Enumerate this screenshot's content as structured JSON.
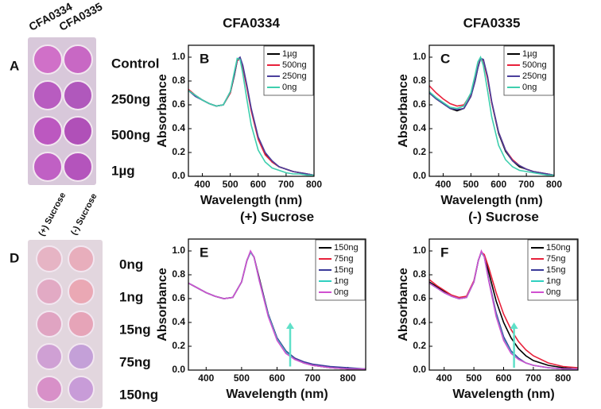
{
  "photos": [
    {
      "label": "A",
      "columns": [
        "CFA0334",
        "CFA0335"
      ],
      "rows": [
        "Control",
        "250ng",
        "500ng",
        "1µg"
      ]
    },
    {
      "label": "D",
      "columns": [
        "(+) Sucrose",
        "(-) Sucrose"
      ],
      "rows": [
        "0ng",
        "1ng",
        "15ng",
        "75ng",
        "150ng"
      ]
    }
  ],
  "chart_data": [
    {
      "type": "line",
      "label": "B",
      "title": "CFA0334",
      "xlabel": "Wavelength (nm)",
      "ylabel": "Absorbance",
      "legend": "upper right",
      "xlim": [
        350,
        800
      ],
      "ylim": [
        0,
        1.1
      ],
      "xticks": [
        400,
        500,
        600,
        700,
        800
      ],
      "yticks": [
        {
          "value": 0,
          "label": "0.0"
        },
        0.2,
        0.4,
        0.6,
        0.8,
        {
          "value": 1,
          "label": "1.0"
        }
      ],
      "x": [
        350,
        375,
        400,
        425,
        450,
        475,
        500,
        515,
        525,
        535,
        545,
        560,
        575,
        600,
        625,
        650,
        675,
        700,
        725,
        750,
        775,
        800
      ],
      "series": [
        {
          "name": "1µg",
          "color": "#000000",
          "values": [
            0.72,
            0.68,
            0.64,
            0.61,
            0.59,
            0.6,
            0.7,
            0.85,
            0.97,
            0.99,
            0.92,
            0.75,
            0.56,
            0.32,
            0.19,
            0.12,
            0.08,
            0.06,
            0.04,
            0.03,
            0.02,
            0.01
          ]
        },
        {
          "name": "500ng",
          "color": "#e8213b",
          "values": [
            0.73,
            0.68,
            0.64,
            0.61,
            0.59,
            0.6,
            0.7,
            0.86,
            0.97,
            0.99,
            0.91,
            0.74,
            0.55,
            0.31,
            0.18,
            0.12,
            0.08,
            0.06,
            0.04,
            0.03,
            0.02,
            0.01
          ]
        },
        {
          "name": "250ng",
          "color": "#4b3f9c",
          "values": [
            0.72,
            0.67,
            0.64,
            0.61,
            0.59,
            0.6,
            0.71,
            0.86,
            0.98,
            1.0,
            0.93,
            0.76,
            0.57,
            0.33,
            0.2,
            0.13,
            0.08,
            0.06,
            0.04,
            0.03,
            0.02,
            0.01
          ]
        },
        {
          "name": "0ng",
          "color": "#3ecfae",
          "values": [
            0.72,
            0.68,
            0.64,
            0.61,
            0.59,
            0.6,
            0.71,
            0.88,
            0.99,
            0.98,
            0.86,
            0.64,
            0.43,
            0.22,
            0.12,
            0.07,
            0.05,
            0.03,
            0.02,
            0.02,
            0.01,
            0.01
          ]
        }
      ]
    },
    {
      "type": "line",
      "label": "C",
      "title": "CFA0335",
      "xlabel": "Wavelength (nm)",
      "ylabel": "Absorbance",
      "legend": "upper right",
      "xlim": [
        350,
        800
      ],
      "ylim": [
        0,
        1.1
      ],
      "xticks": [
        400,
        500,
        600,
        700,
        800
      ],
      "yticks": [
        {
          "value": 0,
          "label": "0.0"
        },
        0.2,
        0.4,
        0.6,
        0.8,
        {
          "value": 1,
          "label": "1.0"
        }
      ],
      "x": [
        350,
        375,
        400,
        425,
        450,
        475,
        500,
        515,
        525,
        535,
        545,
        560,
        575,
        600,
        625,
        650,
        675,
        700,
        725,
        750,
        775,
        800
      ],
      "series": [
        {
          "name": "1µg",
          "color": "#000000",
          "values": [
            0.7,
            0.65,
            0.61,
            0.57,
            0.55,
            0.57,
            0.67,
            0.8,
            0.91,
            0.99,
            0.98,
            0.83,
            0.62,
            0.36,
            0.21,
            0.13,
            0.08,
            0.06,
            0.04,
            0.03,
            0.02,
            0.01
          ]
        },
        {
          "name": "500ng",
          "color": "#e8213b",
          "values": [
            0.76,
            0.7,
            0.65,
            0.61,
            0.59,
            0.6,
            0.69,
            0.82,
            0.92,
            0.99,
            0.97,
            0.82,
            0.62,
            0.37,
            0.22,
            0.14,
            0.09,
            0.06,
            0.04,
            0.03,
            0.02,
            0.01
          ]
        },
        {
          "name": "250ng",
          "color": "#4b3f9c",
          "values": [
            0.7,
            0.65,
            0.61,
            0.57,
            0.56,
            0.57,
            0.67,
            0.8,
            0.91,
            0.99,
            0.98,
            0.84,
            0.63,
            0.37,
            0.22,
            0.13,
            0.09,
            0.06,
            0.04,
            0.03,
            0.02,
            0.01
          ]
        },
        {
          "name": "0ng",
          "color": "#3ecfae",
          "values": [
            0.71,
            0.66,
            0.62,
            0.58,
            0.57,
            0.59,
            0.7,
            0.85,
            0.96,
            1.0,
            0.93,
            0.72,
            0.5,
            0.26,
            0.14,
            0.08,
            0.05,
            0.04,
            0.03,
            0.02,
            0.01,
            0.01
          ]
        }
      ]
    },
    {
      "type": "line",
      "label": "E",
      "title": "(+) Sucrose",
      "xlabel": "Wavelength (nm)",
      "ylabel": "Absorbance",
      "legend": "upper right",
      "xlim": [
        350,
        850
      ],
      "ylim": [
        0,
        1.1
      ],
      "xticks": [
        400,
        500,
        600,
        700,
        800
      ],
      "yticks": [
        {
          "value": 0,
          "label": "0.0"
        },
        0.2,
        0.4,
        0.6,
        0.8,
        {
          "value": 1,
          "label": "1.0"
        }
      ],
      "x": [
        350,
        375,
        400,
        425,
        450,
        475,
        500,
        515,
        525,
        535,
        550,
        575,
        600,
        625,
        650,
        675,
        700,
        750,
        800,
        850
      ],
      "arrow": {
        "x": 637,
        "y": [
          0.03,
          0.4
        ],
        "color": "#5fe0c8"
      },
      "series": [
        {
          "name": "150ng",
          "color": "#000000",
          "values": [
            0.73,
            0.69,
            0.65,
            0.62,
            0.6,
            0.61,
            0.74,
            0.92,
            0.99,
            0.95,
            0.77,
            0.47,
            0.27,
            0.16,
            0.1,
            0.06,
            0.04,
            0.02,
            0.01,
            0.01
          ]
        },
        {
          "name": "75ng",
          "color": "#e8213b",
          "values": [
            0.73,
            0.69,
            0.65,
            0.62,
            0.6,
            0.61,
            0.74,
            0.92,
            0.99,
            0.95,
            0.76,
            0.46,
            0.26,
            0.15,
            0.09,
            0.06,
            0.04,
            0.02,
            0.01,
            0.01
          ]
        },
        {
          "name": "15ng",
          "color": "#3a3a9a",
          "values": [
            0.73,
            0.69,
            0.65,
            0.62,
            0.6,
            0.61,
            0.74,
            0.92,
            0.99,
            0.95,
            0.76,
            0.47,
            0.27,
            0.16,
            0.1,
            0.07,
            0.05,
            0.03,
            0.02,
            0.01
          ]
        },
        {
          "name": "1ng",
          "color": "#30d0c0",
          "values": [
            0.73,
            0.69,
            0.65,
            0.62,
            0.6,
            0.61,
            0.74,
            0.92,
            0.99,
            0.95,
            0.75,
            0.46,
            0.26,
            0.15,
            0.09,
            0.06,
            0.04,
            0.02,
            0.01,
            0.01
          ]
        },
        {
          "name": "0ng",
          "color": "#d050d0",
          "values": [
            0.73,
            0.69,
            0.65,
            0.62,
            0.6,
            0.61,
            0.74,
            0.92,
            1.0,
            0.95,
            0.75,
            0.45,
            0.25,
            0.14,
            0.09,
            0.06,
            0.04,
            0.02,
            0.01,
            0.01
          ]
        }
      ]
    },
    {
      "type": "line",
      "label": "F",
      "title": "(-) Sucrose",
      "xlabel": "Wavelength (nm)",
      "ylabel": "Absorbance",
      "legend": "upper right",
      "xlim": [
        350,
        850
      ],
      "ylim": [
        0,
        1.1
      ],
      "xticks": [
        400,
        500,
        600,
        700,
        800
      ],
      "yticks": [
        {
          "value": 0,
          "label": "0.0"
        },
        0.2,
        0.4,
        0.6,
        0.8,
        {
          "value": 1,
          "label": "1.0"
        }
      ],
      "x": [
        350,
        375,
        400,
        425,
        450,
        475,
        500,
        515,
        525,
        535,
        550,
        575,
        600,
        625,
        650,
        675,
        700,
        750,
        800,
        850
      ],
      "arrow": {
        "x": 635,
        "y": [
          0.02,
          0.4
        ],
        "color": "#5fe0c8"
      },
      "series": [
        {
          "name": "150ng",
          "color": "#000000",
          "values": [
            0.74,
            0.7,
            0.66,
            0.62,
            0.6,
            0.61,
            0.74,
            0.92,
            0.99,
            0.96,
            0.82,
            0.58,
            0.4,
            0.27,
            0.18,
            0.12,
            0.08,
            0.04,
            0.02,
            0.01
          ]
        },
        {
          "name": "75ng",
          "color": "#e8213b",
          "values": [
            0.76,
            0.71,
            0.67,
            0.63,
            0.61,
            0.62,
            0.75,
            0.92,
            0.99,
            0.97,
            0.86,
            0.65,
            0.47,
            0.34,
            0.24,
            0.17,
            0.12,
            0.06,
            0.03,
            0.02
          ]
        },
        {
          "name": "15ng",
          "color": "#3a3a9a",
          "values": [
            0.73,
            0.69,
            0.65,
            0.62,
            0.6,
            0.61,
            0.74,
            0.92,
            0.99,
            0.95,
            0.76,
            0.48,
            0.28,
            0.16,
            0.1,
            0.06,
            0.04,
            0.02,
            0.01,
            0.01
          ]
        },
        {
          "name": "1ng",
          "color": "#30d0c0",
          "values": [
            0.73,
            0.69,
            0.65,
            0.62,
            0.6,
            0.61,
            0.74,
            0.92,
            0.99,
            0.95,
            0.75,
            0.46,
            0.26,
            0.15,
            0.09,
            0.06,
            0.04,
            0.02,
            0.01,
            0.01
          ]
        },
        {
          "name": "0ng",
          "color": "#d050d0",
          "values": [
            0.73,
            0.69,
            0.65,
            0.62,
            0.6,
            0.61,
            0.74,
            0.92,
            1.0,
            0.95,
            0.75,
            0.45,
            0.25,
            0.14,
            0.09,
            0.06,
            0.04,
            0.02,
            0.01,
            0.01
          ]
        }
      ]
    }
  ]
}
